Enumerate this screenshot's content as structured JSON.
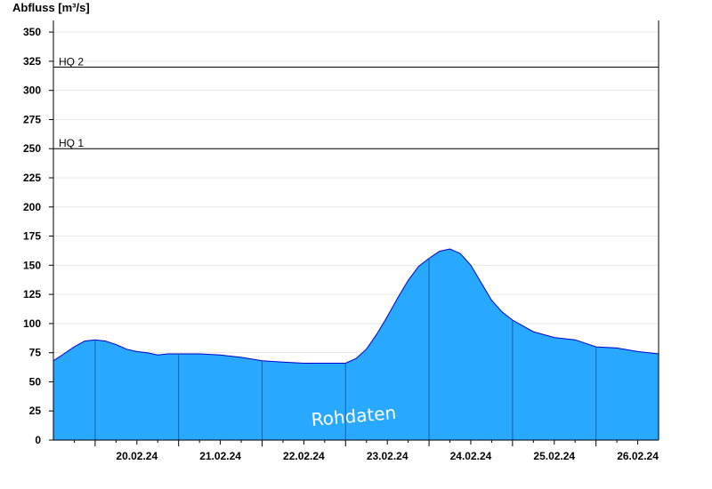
{
  "chart_data": {
    "type": "area",
    "ylabel": "Abfluss [m³/s]",
    "ylim": [
      0,
      360
    ],
    "yticks": [
      0,
      25,
      50,
      75,
      100,
      125,
      150,
      175,
      200,
      225,
      250,
      275,
      300,
      325,
      350
    ],
    "xlim": [
      "19.02.24 12:00",
      "26.02.24 18:00"
    ],
    "xticks": [
      "20.02.24",
      "21.02.24",
      "22.02.24",
      "23.02.24",
      "24.02.24",
      "25.02.24",
      "26.02.24"
    ],
    "grid": true,
    "reference_lines": [
      {
        "label": "HQ 1",
        "value": 250
      },
      {
        "label": "HQ 2",
        "value": 320
      }
    ],
    "watermark": "Rohdaten",
    "fill_color": "#29a8ff",
    "line_color": "#0000cc",
    "series": [
      {
        "x": [
          "19.02.24 12:00",
          "19.02.24 15:00",
          "19.02.24 18:00",
          "19.02.24 21:00",
          "20.02.24 00:00",
          "20.02.24 03:00",
          "20.02.24 06:00",
          "20.02.24 09:00",
          "20.02.24 12:00",
          "20.02.24 15:00",
          "20.02.24 18:00",
          "20.02.24 21:00",
          "21.02.24 00:00",
          "21.02.24 06:00",
          "21.02.24 12:00",
          "21.02.24 18:00",
          "22.02.24 00:00",
          "22.02.24 06:00",
          "22.02.24 12:00",
          "22.02.24 18:00",
          "23.02.24 00:00",
          "23.02.24 03:00",
          "23.02.24 06:00",
          "23.02.24 09:00",
          "23.02.24 12:00",
          "23.02.24 15:00",
          "23.02.24 18:00",
          "23.02.24 21:00",
          "24.02.24 00:00",
          "24.02.24 03:00",
          "24.02.24 06:00",
          "24.02.24 09:00",
          "24.02.24 12:00",
          "24.02.24 15:00",
          "24.02.24 18:00",
          "24.02.24 21:00",
          "25.02.24 00:00",
          "25.02.24 06:00",
          "25.02.24 12:00",
          "25.02.24 18:00",
          "26.02.24 00:00",
          "26.02.24 06:00",
          "26.02.24 12:00",
          "26.02.24 18:00"
        ],
        "values": [
          68,
          74,
          80,
          85,
          86,
          85,
          82,
          78,
          76,
          75,
          73,
          74,
          74,
          74,
          73,
          71,
          68,
          67,
          66,
          66,
          66,
          70,
          78,
          91,
          106,
          122,
          137,
          149,
          156,
          162,
          164,
          160,
          150,
          135,
          120,
          110,
          103,
          93,
          88,
          86,
          80,
          79,
          76,
          74
        ]
      }
    ]
  }
}
